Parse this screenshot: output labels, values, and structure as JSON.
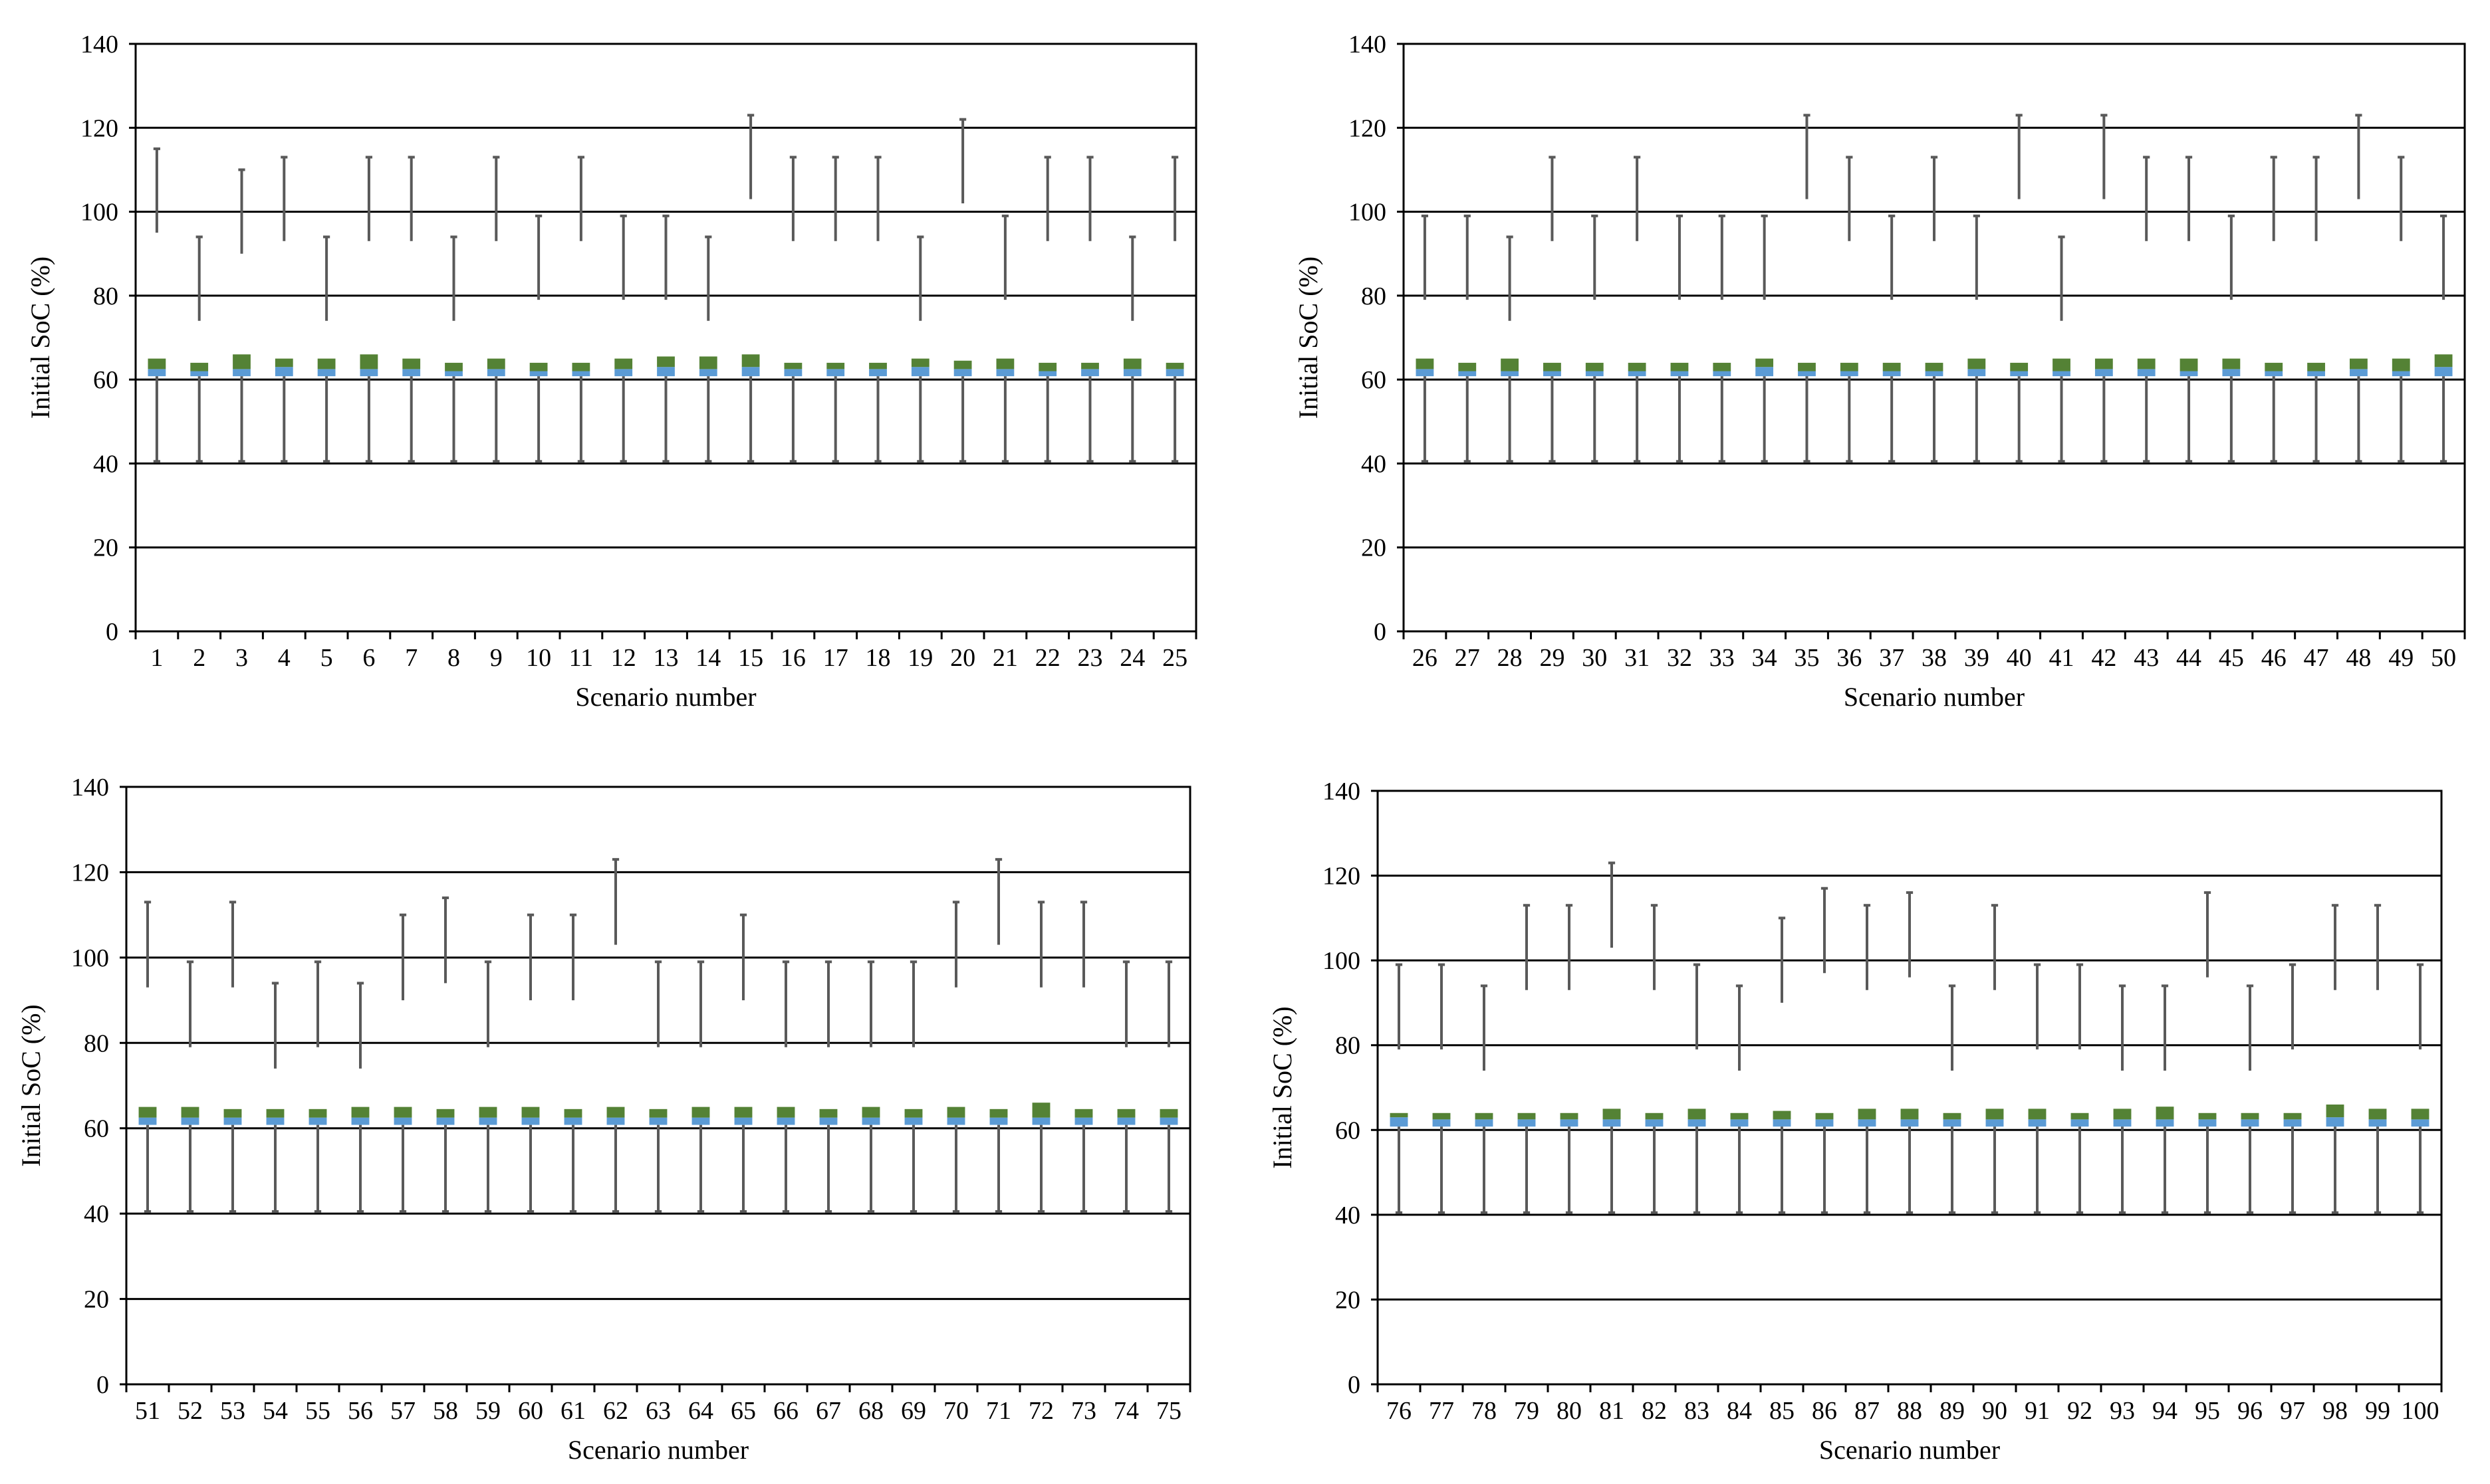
{
  "chart_data": [
    {
      "type": "box",
      "xlabel": "Scenario number",
      "ylabel": "Initial SoC (%)",
      "ylim": [
        0,
        140
      ],
      "yticks": [
        0,
        20,
        40,
        60,
        80,
        100,
        120,
        140
      ],
      "grid": true,
      "categories": [
        "1",
        "2",
        "3",
        "4",
        "5",
        "6",
        "7",
        "8",
        "9",
        "10",
        "11",
        "12",
        "13",
        "14",
        "15",
        "16",
        "17",
        "18",
        "19",
        "20",
        "21",
        "22",
        "23",
        "24",
        "25"
      ],
      "whisker_low": [
        40.5,
        40.5,
        40.5,
        40.5,
        40.5,
        40.5,
        40.5,
        40.5,
        40.5,
        40.5,
        40.5,
        40.5,
        40.5,
        40.5,
        40.5,
        40.5,
        40.5,
        40.5,
        40.5,
        40.5,
        40.5,
        40.5,
        40.5,
        40.5,
        40.5
      ],
      "q1": [
        60.8,
        60.8,
        60.8,
        60.8,
        60.8,
        60.8,
        60.8,
        60.8,
        60.8,
        60.8,
        60.8,
        60.8,
        60.8,
        60.8,
        60.8,
        60.8,
        60.8,
        60.8,
        60.8,
        60.8,
        60.8,
        60.8,
        60.8,
        60.8,
        60.8
      ],
      "median": [
        62.5,
        62.0,
        62.5,
        63.0,
        62.5,
        62.5,
        62.5,
        62.0,
        62.5,
        62.0,
        62.0,
        62.5,
        63.0,
        62.5,
        63.0,
        62.5,
        62.5,
        62.5,
        63.0,
        62.5,
        62.5,
        62.0,
        62.5,
        62.5,
        62.5
      ],
      "q3": [
        65.0,
        64.0,
        66.0,
        65.0,
        65.0,
        66.0,
        65.0,
        64.0,
        65.0,
        64.0,
        64.0,
        65.0,
        65.5,
        65.5,
        66.0,
        64.0,
        64.0,
        64.0,
        65.0,
        64.5,
        65.0,
        64.0,
        64.0,
        65.0,
        64.0
      ],
      "whisker_high": [
        115,
        94,
        110,
        113,
        94,
        113,
        113,
        94,
        113,
        99,
        113,
        99,
        99,
        94,
        123,
        113,
        113,
        113,
        94,
        122,
        99,
        113,
        113,
        94,
        113
      ],
      "upper_start": [
        95,
        74,
        90,
        93,
        74,
        93,
        93,
        74,
        93,
        79,
        93,
        79,
        79,
        74,
        103,
        93,
        93,
        93,
        74,
        102,
        79,
        93,
        93,
        74,
        93
      ]
    },
    {
      "type": "box",
      "xlabel": "Scenario number",
      "ylabel": "Initial SoC (%)",
      "ylim": [
        0,
        140
      ],
      "yticks": [
        0,
        20,
        40,
        60,
        80,
        100,
        120,
        140
      ],
      "grid": true,
      "categories": [
        "26",
        "27",
        "28",
        "29",
        "30",
        "31",
        "32",
        "33",
        "34",
        "35",
        "36",
        "37",
        "38",
        "39",
        "40",
        "41",
        "42",
        "43",
        "44",
        "45",
        "46",
        "47",
        "48",
        "49",
        "50"
      ],
      "whisker_low": [
        40.5,
        40.5,
        40.5,
        40.5,
        40.5,
        40.5,
        40.5,
        40.5,
        40.5,
        40.5,
        40.5,
        40.5,
        40.5,
        40.5,
        40.5,
        40.5,
        40.5,
        40.5,
        40.5,
        40.5,
        40.5,
        40.5,
        40.5,
        40.5,
        40.5
      ],
      "q1": [
        60.8,
        60.8,
        60.8,
        60.8,
        60.8,
        60.8,
        60.8,
        60.8,
        60.8,
        60.8,
        60.8,
        60.8,
        60.8,
        60.8,
        60.8,
        60.8,
        60.8,
        60.8,
        60.8,
        60.8,
        60.8,
        60.8,
        60.8,
        60.8,
        60.8
      ],
      "median": [
        62.5,
        62.0,
        62.0,
        62.0,
        62.0,
        62.0,
        62.0,
        62.0,
        63.0,
        62.0,
        62.0,
        62.0,
        62.0,
        62.5,
        62.0,
        62.0,
        62.5,
        62.5,
        62.0,
        62.5,
        62.0,
        62.0,
        62.5,
        62.0,
        63.0
      ],
      "q3": [
        65.0,
        64.0,
        65.0,
        64.0,
        64.0,
        64.0,
        64.0,
        64.0,
        65.0,
        64.0,
        64.0,
        64.0,
        64.0,
        65.0,
        64.0,
        65.0,
        65.0,
        65.0,
        65.0,
        65.0,
        64.0,
        64.0,
        65.0,
        65.0,
        66.0
      ],
      "whisker_high": [
        99,
        99,
        94,
        113,
        99,
        113,
        99,
        99,
        99,
        123,
        113,
        99,
        113,
        99,
        123,
        94,
        123,
        113,
        113,
        99,
        113,
        113,
        123,
        113,
        99
      ],
      "upper_start": [
        79,
        79,
        74,
        93,
        79,
        93,
        79,
        79,
        79,
        103,
        93,
        79,
        93,
        79,
        103,
        74,
        103,
        93,
        93,
        79,
        93,
        93,
        103,
        93,
        79
      ]
    },
    {
      "type": "box",
      "xlabel": "Scenario number",
      "ylabel": "Initial SoC (%)",
      "ylim": [
        0,
        140
      ],
      "yticks": [
        0,
        20,
        40,
        60,
        80,
        100,
        120,
        140
      ],
      "grid": true,
      "categories": [
        "51",
        "52",
        "53",
        "54",
        "55",
        "56",
        "57",
        "58",
        "59",
        "60",
        "61",
        "62",
        "63",
        "64",
        "65",
        "66",
        "67",
        "68",
        "69",
        "70",
        "71",
        "72",
        "73",
        "74",
        "75"
      ],
      "whisker_low": [
        40.5,
        40.5,
        40.5,
        40.5,
        40.5,
        40.5,
        40.5,
        40.5,
        40.5,
        40.5,
        40.5,
        40.5,
        40.5,
        40.5,
        40.5,
        40.5,
        40.5,
        40.5,
        40.5,
        40.5,
        40.5,
        40.5,
        40.5,
        40.5,
        40.5
      ],
      "q1": [
        60.8,
        60.8,
        60.8,
        60.8,
        60.8,
        60.8,
        60.8,
        60.8,
        60.8,
        60.8,
        60.8,
        60.8,
        60.8,
        60.8,
        60.8,
        60.8,
        60.8,
        60.8,
        60.8,
        60.8,
        60.8,
        60.8,
        60.8,
        60.8,
        60.8
      ],
      "median": [
        62.5,
        62.5,
        62.5,
        62.5,
        62.5,
        62.5,
        62.5,
        62.5,
        62.5,
        62.5,
        62.5,
        62.5,
        62.5,
        62.5,
        62.5,
        62.5,
        62.5,
        62.5,
        62.5,
        62.5,
        62.5,
        62.5,
        62.5,
        62.5,
        62.5
      ],
      "q3": [
        65.0,
        65.0,
        64.5,
        64.5,
        64.5,
        65.0,
        65.0,
        64.5,
        65.0,
        65.0,
        64.5,
        65.0,
        64.5,
        65.0,
        65.0,
        65.0,
        64.5,
        65.0,
        64.5,
        65.0,
        64.5,
        66.0,
        64.5,
        64.5,
        64.5
      ],
      "whisker_high": [
        113,
        99,
        113,
        94,
        99,
        94,
        110,
        114,
        99,
        110,
        110,
        123,
        99,
        99,
        110,
        99,
        99,
        99,
        99,
        113,
        123,
        113,
        113,
        99,
        99
      ],
      "upper_start": [
        93,
        79,
        93,
        74,
        79,
        74,
        90,
        94,
        79,
        90,
        90,
        103,
        79,
        79,
        90,
        79,
        79,
        79,
        79,
        93,
        103,
        93,
        93,
        79,
        79
      ]
    },
    {
      "type": "box",
      "xlabel": "Scenario number",
      "ylabel": "Initial SoC (%)",
      "ylim": [
        0,
        140
      ],
      "yticks": [
        0,
        20,
        40,
        60,
        80,
        100,
        120,
        140
      ],
      "grid": true,
      "categories": [
        "76",
        "77",
        "78",
        "79",
        "80",
        "81",
        "82",
        "83",
        "84",
        "85",
        "86",
        "87",
        "88",
        "89",
        "90",
        "91",
        "92",
        "93",
        "94",
        "95",
        "96",
        "97",
        "98",
        "99",
        "100"
      ],
      "whisker_low": [
        40.5,
        40.5,
        40.5,
        40.5,
        40.5,
        40.5,
        40.5,
        40.5,
        40.5,
        40.5,
        40.5,
        40.5,
        40.5,
        40.5,
        40.5,
        40.5,
        40.5,
        40.5,
        40.5,
        40.5,
        40.5,
        40.5,
        40.5,
        40.5,
        40.5
      ],
      "q1": [
        60.8,
        60.8,
        60.8,
        60.8,
        60.8,
        60.8,
        60.8,
        60.8,
        60.8,
        60.8,
        60.8,
        60.8,
        60.8,
        60.8,
        60.8,
        60.8,
        60.8,
        60.8,
        60.8,
        60.8,
        60.8,
        60.8,
        60.8,
        60.8,
        60.8
      ],
      "median": [
        63.0,
        62.5,
        62.5,
        62.5,
        62.5,
        62.5,
        62.5,
        62.5,
        62.5,
        62.5,
        62.5,
        62.5,
        62.5,
        62.5,
        62.5,
        62.5,
        62.5,
        62.5,
        62.5,
        62.5,
        62.5,
        62.5,
        63.0,
        62.5,
        62.5
      ],
      "q3": [
        64.0,
        64.0,
        64.0,
        64.0,
        64.0,
        65.0,
        64.0,
        65.0,
        64.0,
        64.5,
        64.0,
        65.0,
        65.0,
        64.0,
        65.0,
        65.0,
        64.0,
        65.0,
        65.5,
        64.0,
        64.0,
        64.0,
        66.0,
        65.0,
        65.0
      ],
      "whisker_high": [
        99,
        99,
        94,
        113,
        113,
        123,
        113,
        99,
        94,
        110,
        117,
        113,
        116,
        94,
        113,
        99,
        99,
        94,
        94,
        116,
        94,
        99,
        113,
        113,
        99
      ],
      "upper_start": [
        79,
        79,
        74,
        93,
        93,
        103,
        93,
        79,
        74,
        90,
        97,
        93,
        96,
        74,
        93,
        79,
        79,
        74,
        74,
        96,
        74,
        79,
        93,
        93,
        79
      ]
    }
  ],
  "colors": {
    "lower_box": "#5b9bd5",
    "upper_box": "#548235",
    "whisker": "#595959",
    "gridline": "#000000",
    "axis": "#000000"
  }
}
